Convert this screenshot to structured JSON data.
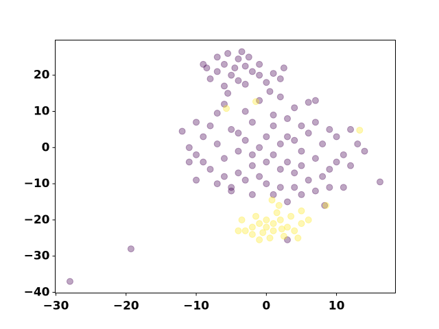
{
  "chart_data": {
    "type": "scatter",
    "xlim": [
      -30.1,
      18.4
    ],
    "ylim": [
      -40.2,
      29.7
    ],
    "xticks": [
      {
        "value": -30,
        "label": "−30"
      },
      {
        "value": -20,
        "label": "−20"
      },
      {
        "value": -10,
        "label": "−10"
      },
      0,
      10
    ],
    "yticks": [
      {
        "value": -40,
        "label": "−40"
      },
      {
        "value": -30,
        "label": "−30"
      },
      {
        "value": -20,
        "label": "−20"
      },
      {
        "value": -10,
        "label": "−10"
      },
      0,
      10,
      20
    ],
    "alpha": 0.35,
    "series": [
      {
        "color": "#440154",
        "x": [
          -5.5,
          -4,
          -6,
          -3,
          -7,
          -2,
          -5,
          -8,
          -4,
          -1,
          1,
          2.5,
          -6,
          -3,
          0,
          2,
          -8.5,
          -2.5,
          -9,
          -7,
          -4.5,
          -1,
          0.5,
          -5.5,
          -3.5,
          -12,
          -11,
          -10,
          -9,
          -8,
          -7,
          -6,
          -5,
          -4,
          -3,
          -2,
          -1,
          0,
          1,
          2,
          3,
          4,
          5,
          6,
          7,
          8,
          9,
          10,
          11,
          12,
          13,
          14,
          -10,
          -9,
          -8,
          -7,
          -6,
          -5,
          -4,
          -3,
          -2,
          -1,
          0,
          1,
          2,
          3,
          4,
          5,
          6,
          7,
          8,
          9,
          10,
          11,
          12,
          -3,
          -1,
          2,
          4,
          6,
          7,
          -11,
          -10,
          -6,
          -5,
          -2,
          1,
          3,
          5,
          7,
          9,
          -7,
          -4,
          0,
          2,
          3,
          5,
          1,
          -2,
          4,
          -28,
          -19.3,
          16.2,
          3,
          8.3
        ],
        "values": [
          26,
          24.5,
          23,
          22.5,
          21,
          21,
          20,
          19,
          18.5,
          20,
          20.5,
          22,
          17,
          17.5,
          18,
          19,
          22,
          25,
          23,
          25,
          22,
          23,
          15.5,
          15,
          26.5,
          4.5,
          0,
          -2,
          3,
          -6,
          1,
          -3,
          5,
          -1,
          2,
          -5,
          0,
          3,
          -2,
          1,
          -4,
          2,
          -1,
          4,
          -3,
          1,
          -6,
          3,
          -2,
          -5,
          1,
          -1,
          -9,
          -4,
          6,
          9.5,
          -8,
          -11,
          -7,
          -9,
          7,
          -8,
          -10,
          6,
          -11,
          8,
          -7,
          6,
          -9,
          7,
          -8,
          5,
          -4,
          -11,
          5,
          10,
          13,
          14,
          11,
          12.5,
          13,
          -4,
          7,
          12,
          -12,
          -13,
          -13,
          -15,
          -13,
          -12,
          -11,
          -10,
          4,
          -4,
          -6,
          3,
          -5,
          9,
          -2,
          -11,
          -37,
          -28,
          -9.5,
          -25.5,
          -16
        ]
      },
      {
        "color": "#fde725",
        "x": [
          0,
          -1,
          1,
          -2,
          2,
          0.5,
          -3,
          3,
          -1.5,
          1.5,
          4,
          -3.5,
          2.5,
          0,
          -0.5,
          1,
          -2,
          5,
          3.5,
          -1,
          4.5,
          1.8,
          0.8,
          -4,
          6,
          2.2,
          -5.7,
          -1.5,
          13.3,
          8.5,
          5
        ],
        "values": [
          -22,
          -21,
          -23,
          -24,
          -20,
          -25,
          -23,
          -22,
          -19,
          -18,
          -23,
          -20,
          -24.5,
          -20,
          -23.5,
          -21,
          -22,
          -21,
          -19,
          -25.5,
          -25,
          -16,
          -14.5,
          -23,
          -20,
          -22.5,
          10.8,
          12.7,
          4.8,
          -16,
          -17.5
        ]
      }
    ]
  }
}
